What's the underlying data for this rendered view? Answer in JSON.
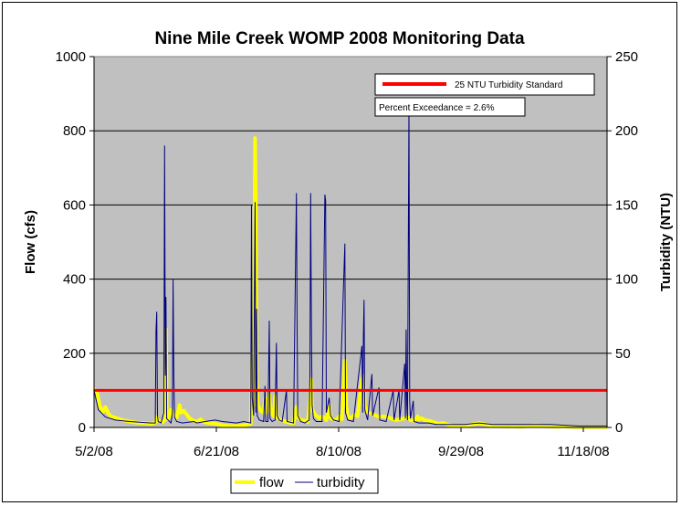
{
  "chart_data": {
    "type": "line",
    "title": "Nine Mile Creek WOMP 2008 Monitoring Data",
    "ylabel": "Flow (cfs)",
    "y2label": "Turbidity (NTU)",
    "ylim": [
      0,
      1000
    ],
    "y2lim": [
      0,
      250
    ],
    "y_ticks": [
      "0",
      "200",
      "400",
      "600",
      "800",
      "1000"
    ],
    "y2_ticks": [
      "0",
      "50",
      "100",
      "150",
      "200",
      "250"
    ],
    "x_ticks": [
      "5/2/08",
      "6/21/08",
      "8/10/08",
      "9/29/08",
      "11/18/08"
    ],
    "x_tick_values": [
      0,
      50,
      100,
      150,
      200
    ],
    "x_day_range": [
      0,
      200
    ],
    "grid": "horizontal",
    "standard": {
      "label": "25 NTU Turbidity Standard",
      "value": 25,
      "color": "#ff0000"
    },
    "annotation": "Percent Exceedance = 2.6%",
    "legend_position": "bottom",
    "series": [
      {
        "name": "flow",
        "color": "#ffff00",
        "points": [
          [
            0,
            104
          ],
          [
            2,
            95
          ],
          [
            4,
            60
          ],
          [
            6,
            40
          ],
          [
            8,
            55
          ],
          [
            10,
            38
          ],
          [
            12,
            30
          ],
          [
            15,
            26
          ],
          [
            20,
            20
          ],
          [
            25,
            16
          ],
          [
            30,
            13
          ],
          [
            35,
            12
          ],
          [
            40,
            10
          ],
          [
            43,
            13
          ],
          [
            44,
            28
          ],
          [
            45,
            18
          ],
          [
            48,
            14
          ],
          [
            50,
            22
          ],
          [
            50.5,
            265
          ],
          [
            51,
            40
          ],
          [
            52,
            22
          ],
          [
            54,
            48
          ],
          [
            56,
            35
          ],
          [
            58,
            26
          ],
          [
            60,
            60
          ],
          [
            61,
            40
          ],
          [
            63,
            45
          ],
          [
            65,
            35
          ],
          [
            67,
            25
          ],
          [
            70,
            18
          ],
          [
            72,
            15
          ],
          [
            75,
            22
          ],
          [
            76,
            16
          ],
          [
            80,
            12
          ],
          [
            85,
            10
          ],
          [
            88,
            8
          ],
          [
            90,
            6
          ],
          [
            92,
            5
          ],
          [
            95,
            4
          ],
          [
            98,
            4
          ],
          [
            100,
            4
          ],
          [
            103,
            5
          ],
          [
            105,
            6
          ],
          [
            108,
            8
          ],
          [
            110,
            10
          ],
          [
            111,
            200
          ],
          [
            111.5,
            90
          ],
          [
            112,
            60
          ],
          [
            113,
            780
          ],
          [
            113.5,
            610
          ],
          [
            114,
            130
          ],
          [
            115,
            60
          ],
          [
            117,
            45
          ],
          [
            119,
            40
          ],
          [
            120,
            80
          ],
          [
            121,
            40
          ],
          [
            123,
            90
          ],
          [
            124,
            40
          ],
          [
            126,
            30
          ],
          [
            127,
            85
          ],
          [
            128,
            30
          ],
          [
            130,
            22
          ],
          [
            133,
            18
          ],
          [
            135,
            15
          ],
          [
            138,
            12
          ],
          [
            140,
            12
          ],
          [
            142,
            55
          ],
          [
            143,
            28
          ],
          [
            145,
            20
          ],
          [
            148,
            18
          ],
          [
            150,
            15
          ],
          [
            152,
            90
          ],
          [
            152.5,
            130
          ],
          [
            153,
            50
          ],
          [
            155,
            35
          ],
          [
            158,
            25
          ],
          [
            160,
            30
          ],
          [
            163,
            20
          ],
          [
            165,
            60
          ],
          [
            166,
            25
          ],
          [
            168,
            22
          ],
          [
            170,
            20
          ],
          [
            172,
            30
          ],
          [
            174,
            22
          ],
          [
            176,
            180
          ],
          [
            177,
            60
          ],
          [
            178,
            30
          ],
          [
            180,
            25
          ],
          [
            183,
            35
          ],
          [
            185,
            30
          ],
          [
            188,
            130
          ],
          [
            189,
            140
          ],
          [
            190,
            60
          ],
          [
            192,
            40
          ],
          [
            195,
            38
          ],
          [
            198,
            32
          ],
          [
            200,
            28
          ],
          [
            203,
            30
          ],
          [
            205,
            28
          ],
          [
            208,
            25
          ],
          [
            210,
            22
          ],
          [
            212,
            20
          ],
          [
            215,
            22
          ],
          [
            218,
            25
          ],
          [
            220,
            28
          ],
          [
            222,
            20
          ],
          [
            225,
            18
          ],
          [
            227,
            30
          ],
          [
            228,
            22
          ],
          [
            230,
            25
          ],
          [
            232,
            20
          ],
          [
            235,
            18
          ],
          [
            238,
            15
          ],
          [
            240,
            12
          ],
          [
            242,
            10
          ],
          [
            245,
            12
          ],
          [
            248,
            8
          ],
          [
            250,
            6
          ],
          [
            252,
            5
          ],
          [
            255,
            4
          ],
          [
            258,
            4
          ],
          [
            260,
            5
          ],
          [
            262,
            6
          ],
          [
            265,
            8
          ],
          [
            268,
            10
          ],
          [
            270,
            12
          ],
          [
            272,
            10
          ],
          [
            275,
            8
          ],
          [
            278,
            6
          ],
          [
            280,
            5
          ],
          [
            282,
            4
          ],
          [
            285,
            3
          ],
          [
            288,
            3
          ],
          [
            290,
            2
          ],
          [
            292,
            3
          ],
          [
            295,
            3
          ],
          [
            298,
            2
          ],
          [
            300,
            2
          ],
          [
            302,
            3
          ],
          [
            305,
            4
          ],
          [
            308,
            5
          ],
          [
            310,
            6
          ],
          [
            312,
            5
          ],
          [
            315,
            4
          ],
          [
            318,
            3
          ],
          [
            320,
            3
          ],
          [
            322,
            2
          ],
          [
            325,
            2
          ],
          [
            328,
            3
          ],
          [
            330,
            3
          ],
          [
            332,
            2
          ],
          [
            335,
            2
          ],
          [
            338,
            1
          ],
          [
            340,
            1
          ],
          [
            342,
            1
          ],
          [
            345,
            1
          ],
          [
            348,
            1
          ],
          [
            350,
            1
          ],
          [
            352,
            1
          ],
          [
            355,
            1
          ],
          [
            358,
            1
          ],
          [
            360,
            1
          ]
        ]
      },
      {
        "name": "turbidity",
        "color": "#00007f",
        "points": [
          [
            0,
            25
          ],
          [
            3,
            12
          ],
          [
            8,
            7
          ],
          [
            15,
            5
          ],
          [
            25,
            4
          ],
          [
            40,
            3
          ],
          [
            43,
            3
          ],
          [
            43.5,
            65
          ],
          [
            44,
            78
          ],
          [
            44.5,
            8
          ],
          [
            45,
            4
          ],
          [
            47,
            3
          ],
          [
            49,
            10
          ],
          [
            49.5,
            190
          ],
          [
            50,
            35
          ],
          [
            50.5,
            88
          ],
          [
            51,
            6
          ],
          [
            53,
            4
          ],
          [
            54,
            3
          ],
          [
            55,
            10
          ],
          [
            55.5,
            100
          ],
          [
            56,
            36
          ],
          [
            56.5,
            7
          ],
          [
            58,
            4
          ],
          [
            62,
            3
          ],
          [
            70,
            4
          ],
          [
            72,
            3
          ],
          [
            78,
            4
          ],
          [
            85,
            5
          ],
          [
            90,
            4
          ],
          [
            100,
            3
          ],
          [
            105,
            4
          ],
          [
            110,
            3
          ],
          [
            110.5,
            150
          ],
          [
            111,
            20
          ],
          [
            112,
            8
          ],
          [
            113,
            152
          ],
          [
            113.5,
            10
          ],
          [
            114,
            80
          ],
          [
            114.5,
            8
          ],
          [
            116,
            5
          ],
          [
            119,
            4
          ],
          [
            120,
            28
          ],
          [
            120.5,
            4
          ],
          [
            122,
            4
          ],
          [
            123,
            72
          ],
          [
            123.5,
            6
          ],
          [
            125,
            4
          ],
          [
            127,
            5
          ],
          [
            128,
            57
          ],
          [
            128.5,
            8
          ],
          [
            130,
            5
          ],
          [
            132,
            4
          ],
          [
            135,
            25
          ],
          [
            135.5,
            4
          ],
          [
            140,
            3
          ],
          [
            142,
            158
          ],
          [
            142.5,
            65
          ],
          [
            143,
            8
          ],
          [
            145,
            4
          ],
          [
            148,
            3
          ],
          [
            151,
            5
          ],
          [
            151.5,
            35
          ],
          [
            152,
            158
          ],
          [
            152.5,
            70
          ],
          [
            153,
            15
          ],
          [
            154,
            6
          ],
          [
            156,
            4
          ],
          [
            160,
            4
          ],
          [
            162,
            157
          ],
          [
            162.5,
            153
          ],
          [
            163,
            10
          ],
          [
            165,
            20
          ],
          [
            166,
            8
          ],
          [
            168,
            5
          ],
          [
            172,
            4
          ],
          [
            176,
            124
          ],
          [
            176.5,
            10
          ],
          [
            178,
            5
          ],
          [
            182,
            4
          ],
          [
            188,
            55
          ],
          [
            188.5,
            10
          ],
          [
            189,
            62
          ],
          [
            189.5,
            86
          ],
          [
            190,
            12
          ],
          [
            192,
            5
          ],
          [
            195,
            36
          ],
          [
            195.5,
            8
          ],
          [
            200,
            27
          ],
          [
            200.5,
            5
          ],
          [
            205,
            4
          ],
          [
            210,
            25
          ],
          [
            210.5,
            5
          ],
          [
            214,
            25
          ],
          [
            214.5,
            5
          ],
          [
            218,
            43
          ],
          [
            218.5,
            6
          ],
          [
            219,
            66
          ],
          [
            219.5,
            15
          ],
          [
            220,
            5
          ],
          [
            221,
            217
          ],
          [
            221.5,
            18
          ],
          [
            222,
            6
          ],
          [
            224,
            18
          ],
          [
            224.5,
            4
          ],
          [
            228,
            3
          ],
          [
            235,
            3
          ],
          [
            240,
            2
          ],
          [
            250,
            2
          ],
          [
            260,
            2
          ],
          [
            270,
            3
          ],
          [
            280,
            2
          ],
          [
            290,
            2
          ],
          [
            300,
            2
          ],
          [
            320,
            2
          ],
          [
            340,
            1
          ],
          [
            360,
            1
          ]
        ]
      }
    ]
  }
}
